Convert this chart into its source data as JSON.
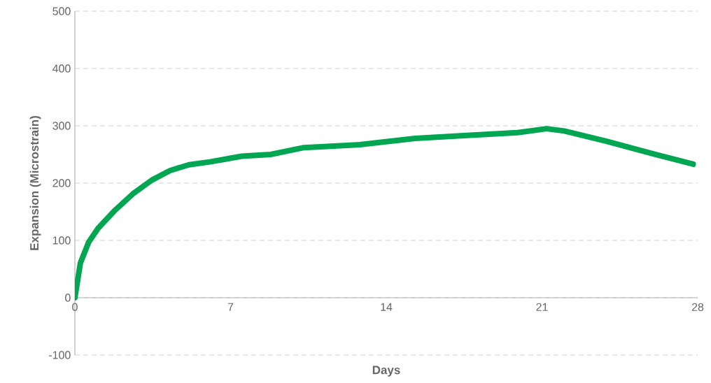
{
  "chart_data": {
    "type": "line",
    "xlabel": "Days",
    "ylabel": "Expansion (Microstrain)",
    "xlim": [
      0,
      28
    ],
    "xticks": [
      0,
      7,
      14,
      21,
      28
    ],
    "ylim": [
      -100,
      500
    ],
    "yticks": [
      -100,
      0,
      100,
      200,
      300,
      400,
      500
    ],
    "grid": "y",
    "series": [
      {
        "color": "#00a651",
        "x": [
          0,
          0.25,
          0.62,
          1.04,
          1.76,
          2.6,
          3.45,
          4.28,
          5.13,
          6.07,
          6.8,
          7.5,
          8.8,
          10.3,
          12.8,
          15.3,
          17.5,
          19.9,
          21.2,
          22,
          23.9,
          26,
          27.8
        ],
        "values": [
          0,
          61,
          97,
          121,
          151,
          181,
          205,
          222,
          232,
          237,
          242,
          247,
          250,
          262,
          267,
          278,
          283,
          288,
          295,
          291,
          273,
          251,
          233
        ]
      }
    ]
  }
}
